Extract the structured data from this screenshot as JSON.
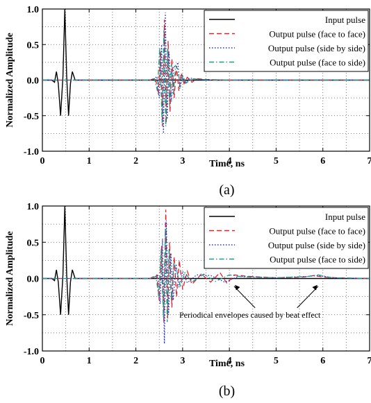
{
  "chart_data": [
    {
      "type": "line",
      "panel_label": "(a)",
      "xlabel": "Time, ns",
      "ylabel": "Normalized Amplitude",
      "xlim": [
        0,
        7
      ],
      "ylim": [
        -1.0,
        1.0
      ],
      "xticks": [
        0,
        1,
        2,
        3,
        4,
        5,
        6,
        7
      ],
      "yticks": [
        -1.0,
        -0.5,
        0.0,
        0.5,
        1.0
      ],
      "ytick_labels": [
        "-1.0",
        "-0.5",
        "0.0",
        "0.5",
        "1.0"
      ],
      "grid": true,
      "legend_position": "top-right",
      "series": [
        {
          "name": "Input pulse",
          "color": "#000000",
          "dash": "solid",
          "x": [
            0,
            0.2,
            0.26,
            0.3,
            0.34,
            0.39,
            0.44,
            0.48,
            0.52,
            0.56,
            0.6,
            0.64,
            0.7,
            7.0
          ],
          "y": [
            0,
            0,
            -0.03,
            0.12,
            -0.05,
            -0.5,
            0.05,
            1.0,
            0.05,
            -0.5,
            -0.05,
            0.12,
            0,
            0
          ]
        },
        {
          "name": "Output pulse (face to face)",
          "color": "#e0202a",
          "dash": "long",
          "x": [
            0,
            2.3,
            2.42,
            2.48,
            2.53,
            2.57,
            2.61,
            2.65,
            2.69,
            2.73,
            2.77,
            2.82,
            2.87,
            2.92,
            2.97,
            3.03,
            3.1,
            3.2,
            3.3,
            3.5,
            4.0,
            7.0
          ],
          "y": [
            0,
            0,
            0.03,
            -0.2,
            0.4,
            -0.65,
            0.85,
            -0.6,
            0.55,
            -0.45,
            0.3,
            -0.25,
            0.2,
            -0.15,
            0.1,
            -0.05,
            0.04,
            -0.03,
            0.02,
            0.01,
            0,
            0
          ]
        },
        {
          "name": "Output pulse (side by side)",
          "color": "#1a2fd0",
          "dash": "dot",
          "x": [
            0,
            2.35,
            2.45,
            2.5,
            2.55,
            2.59,
            2.63,
            2.67,
            2.71,
            2.76,
            2.81,
            2.86,
            2.9,
            2.94,
            2.99,
            3.05,
            3.15,
            3.3,
            3.6,
            7.0
          ],
          "y": [
            0,
            0,
            0.05,
            -0.25,
            0.5,
            -0.75,
            0.95,
            -0.55,
            0.4,
            -0.3,
            0.2,
            0.18,
            0.25,
            -0.12,
            0.08,
            -0.05,
            0.03,
            0.01,
            0,
            0
          ]
        },
        {
          "name": "Output pulse (face to side)",
          "color": "#1a9a8a",
          "dash": "dashdot",
          "x": [
            0,
            2.3,
            2.4,
            2.46,
            2.51,
            2.56,
            2.6,
            2.64,
            2.68,
            2.72,
            2.76,
            2.8,
            2.85,
            2.9,
            2.95,
            3.0,
            3.08,
            3.2,
            3.4,
            3.7,
            7.0
          ],
          "y": [
            0,
            0,
            0.02,
            -0.15,
            0.45,
            -0.6,
            0.7,
            -0.65,
            0.45,
            -0.35,
            0.22,
            -0.2,
            0.2,
            0.15,
            -0.1,
            0.06,
            -0.04,
            0.02,
            0.01,
            0,
            0
          ]
        }
      ],
      "annotation": null
    },
    {
      "type": "line",
      "panel_label": "(b)",
      "xlabel": "Time, ns",
      "ylabel": "Normalized Amplitude",
      "xlim": [
        0,
        7
      ],
      "ylim": [
        -1.0,
        1.0
      ],
      "xticks": [
        0,
        1,
        2,
        3,
        4,
        5,
        6,
        7
      ],
      "yticks": [
        -1.0,
        -0.5,
        0.0,
        0.5,
        1.0
      ],
      "ytick_labels": [
        "-1.0",
        "-0.5",
        "0.0",
        "0.5",
        "1.0"
      ],
      "grid": true,
      "legend_position": "top-right",
      "series": [
        {
          "name": "Input pulse",
          "color": "#000000",
          "dash": "solid",
          "x": [
            0,
            0.2,
            0.26,
            0.3,
            0.34,
            0.39,
            0.44,
            0.48,
            0.52,
            0.56,
            0.6,
            0.64,
            0.7,
            7.0
          ],
          "y": [
            0,
            0,
            -0.03,
            0.12,
            -0.05,
            -0.5,
            0.05,
            1.0,
            0.05,
            -0.5,
            -0.05,
            0.12,
            0,
            0
          ]
        },
        {
          "name": "Output pulse (face to face)",
          "color": "#e0202a",
          "dash": "long",
          "x": [
            0,
            2.3,
            2.45,
            2.5,
            2.55,
            2.6,
            2.64,
            2.68,
            2.72,
            2.77,
            2.82,
            2.87,
            2.93,
            3.0,
            3.1,
            3.2,
            3.4,
            3.6,
            3.8,
            3.95,
            4.1,
            4.4,
            5.0,
            5.6,
            5.8,
            6.0,
            6.3,
            7.0
          ],
          "y": [
            0,
            0,
            0.05,
            -0.3,
            0.45,
            -0.6,
            0.95,
            -0.55,
            0.5,
            -0.4,
            0.3,
            -0.25,
            0.25,
            -0.15,
            0.1,
            -0.08,
            0.06,
            -0.05,
            0.08,
            -0.07,
            0.05,
            0.03,
            0.01,
            0.02,
            0.04,
            0.02,
            0.01,
            0
          ]
        },
        {
          "name": "Output pulse (side by side)",
          "color": "#1a2fd0",
          "dash": "dot",
          "x": [
            0,
            2.35,
            2.47,
            2.52,
            2.57,
            2.61,
            2.65,
            2.7,
            2.75,
            2.8,
            2.86,
            2.92,
            3.0,
            3.1,
            3.3,
            3.6,
            3.9,
            4.2,
            5.0,
            5.7,
            5.9,
            6.2,
            7.0
          ],
          "y": [
            0,
            0,
            0.05,
            -0.35,
            0.55,
            -0.9,
            0.8,
            -0.5,
            0.35,
            -0.3,
            0.2,
            -0.12,
            0.1,
            -0.06,
            0.05,
            0.04,
            -0.05,
            0.03,
            0.01,
            0.03,
            0.04,
            0.01,
            0
          ]
        },
        {
          "name": "Output pulse (face to side)",
          "color": "#1a9a8a",
          "dash": "dashdot",
          "x": [
            0,
            2.3,
            2.43,
            2.49,
            2.54,
            2.59,
            2.63,
            2.67,
            2.71,
            2.76,
            2.81,
            2.87,
            2.95,
            3.05,
            3.2,
            3.45,
            3.7,
            4.0,
            4.3,
            5.0,
            5.7,
            5.9,
            6.2,
            7.0
          ],
          "y": [
            0,
            0,
            0.03,
            -0.25,
            0.4,
            -0.55,
            0.7,
            -0.6,
            0.4,
            -0.3,
            0.2,
            0.12,
            -0.1,
            0.08,
            -0.05,
            0.06,
            -0.04,
            0.05,
            0.02,
            0.01,
            0.03,
            0.05,
            0.01,
            0
          ]
        }
      ],
      "annotation": {
        "text": "Periodical envelopes caused by beat effect",
        "arrows_to": [
          {
            "x": 4.1,
            "y": -0.05
          },
          {
            "x": 5.9,
            "y": -0.05
          }
        ]
      }
    }
  ]
}
